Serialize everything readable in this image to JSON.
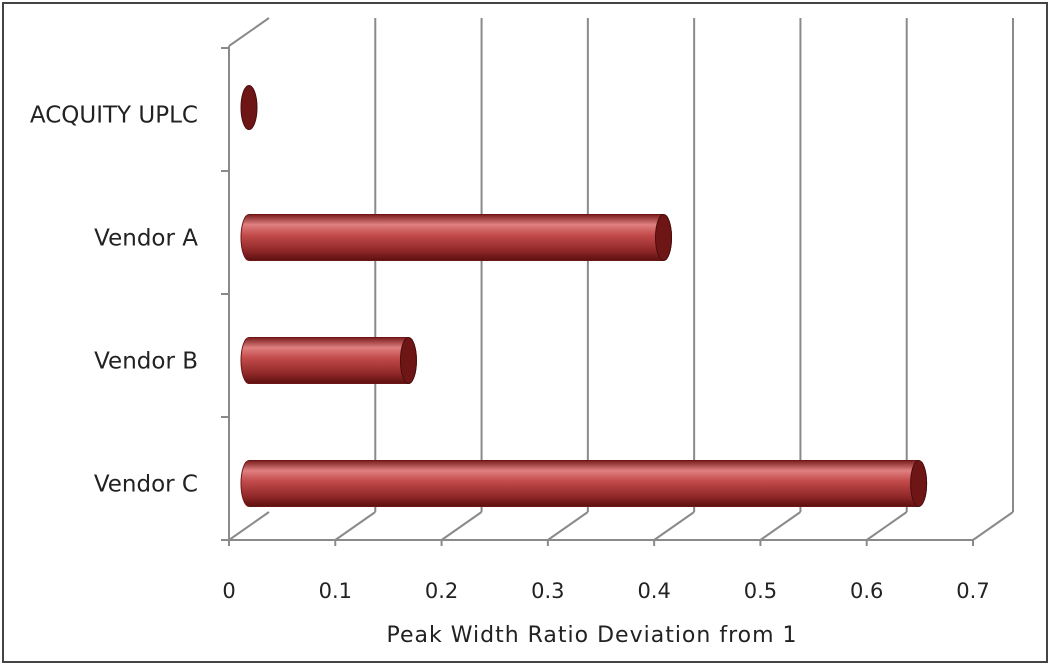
{
  "chart_data": {
    "type": "bar",
    "orientation": "horizontal",
    "style": "3d-cylinder",
    "categories": [
      "ACQUITY UPLC",
      "Vendor A",
      "Vendor B",
      "Vendor C"
    ],
    "values": [
      0.0,
      0.39,
      0.15,
      0.63
    ],
    "xlabel": "Peak Width Ratio Deviation from 1",
    "ylabel": "",
    "xlim": [
      0,
      0.7
    ],
    "xticks": [
      "0",
      "0.1",
      "0.2",
      "0.3",
      "0.4",
      "0.5",
      "0.6",
      "0.7"
    ],
    "grid": true,
    "legend": "none",
    "colors": {
      "bar": "#b83c3c",
      "bar_dark": "#6e1616",
      "bar_light": "#e07878",
      "grid": "#8a8a8a",
      "border": "#444444"
    }
  }
}
